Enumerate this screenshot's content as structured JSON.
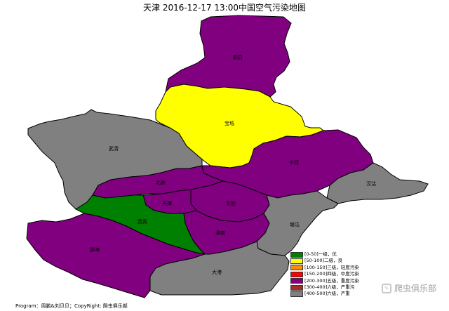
{
  "title": "天津 2016-12-17 13:00中国空气污染地图",
  "districts": [
    {
      "key": "jixian",
      "label": "蓟县",
      "level": "[200-300]五级，重度污染"
    },
    {
      "key": "baodi",
      "label": "宝坻",
      "level": "[50-100]二级，良"
    },
    {
      "key": "wuqing",
      "label": "武清",
      "level": "[300-500]六级，严重污染"
    },
    {
      "key": "ninghe",
      "label": "宁河",
      "level": "[200-300]五级，重度污染"
    },
    {
      "key": "beichen",
      "label": "北辰",
      "level": "[200-300]五级，重度污染"
    },
    {
      "key": "hangu",
      "label": "汉沽",
      "level": "[300-500]六级，严重污染"
    },
    {
      "key": "tianjin",
      "label": "天津",
      "level": "[200-300]五级，重度污染"
    },
    {
      "key": "dongli",
      "label": "东丽",
      "level": "[200-300]五级，重度污染"
    },
    {
      "key": "xiqing",
      "label": "西青",
      "level": "[0-50]一级，优"
    },
    {
      "key": "tanggu",
      "label": "塘沽",
      "level": "[300-500]六级，严重污染"
    },
    {
      "key": "jinnan",
      "label": "津南",
      "level": "[200-300]五级，重度污染"
    },
    {
      "key": "jinghai",
      "label": "静海",
      "level": "[200-300]五级，重度污染"
    },
    {
      "key": "dagang",
      "label": "大港",
      "level": "[300-500]六级，严重污染"
    }
  ],
  "legend": {
    "items": [
      {
        "label": "[0-50]一级，优",
        "color": "#008000"
      },
      {
        "label": "[50-100]二级，良",
        "color": "#ffff00"
      },
      {
        "label": "[100-150]三级，轻度污染",
        "color": "#ff8c00"
      },
      {
        "label": "[150-200]四级，中度污染",
        "color": "#ff0000"
      },
      {
        "label": "[200-300]五级，重度污染",
        "color": "#800080"
      },
      {
        "label": "[300-400]六级，严重污",
        "color": "#a52a2a"
      },
      {
        "label": "[400-500]六级，严重",
        "color": "#808080"
      }
    ]
  },
  "colors": {
    "purple": "#800080",
    "yellow": "#ffff00",
    "gray": "#808080",
    "green": "#008000"
  },
  "footer": "Program：周鹏&刘贝贝；CopyRight: 爬虫俱乐部",
  "watermark": {
    "text": "爬虫俱乐部",
    "icon": "speech-bubble-icon"
  }
}
